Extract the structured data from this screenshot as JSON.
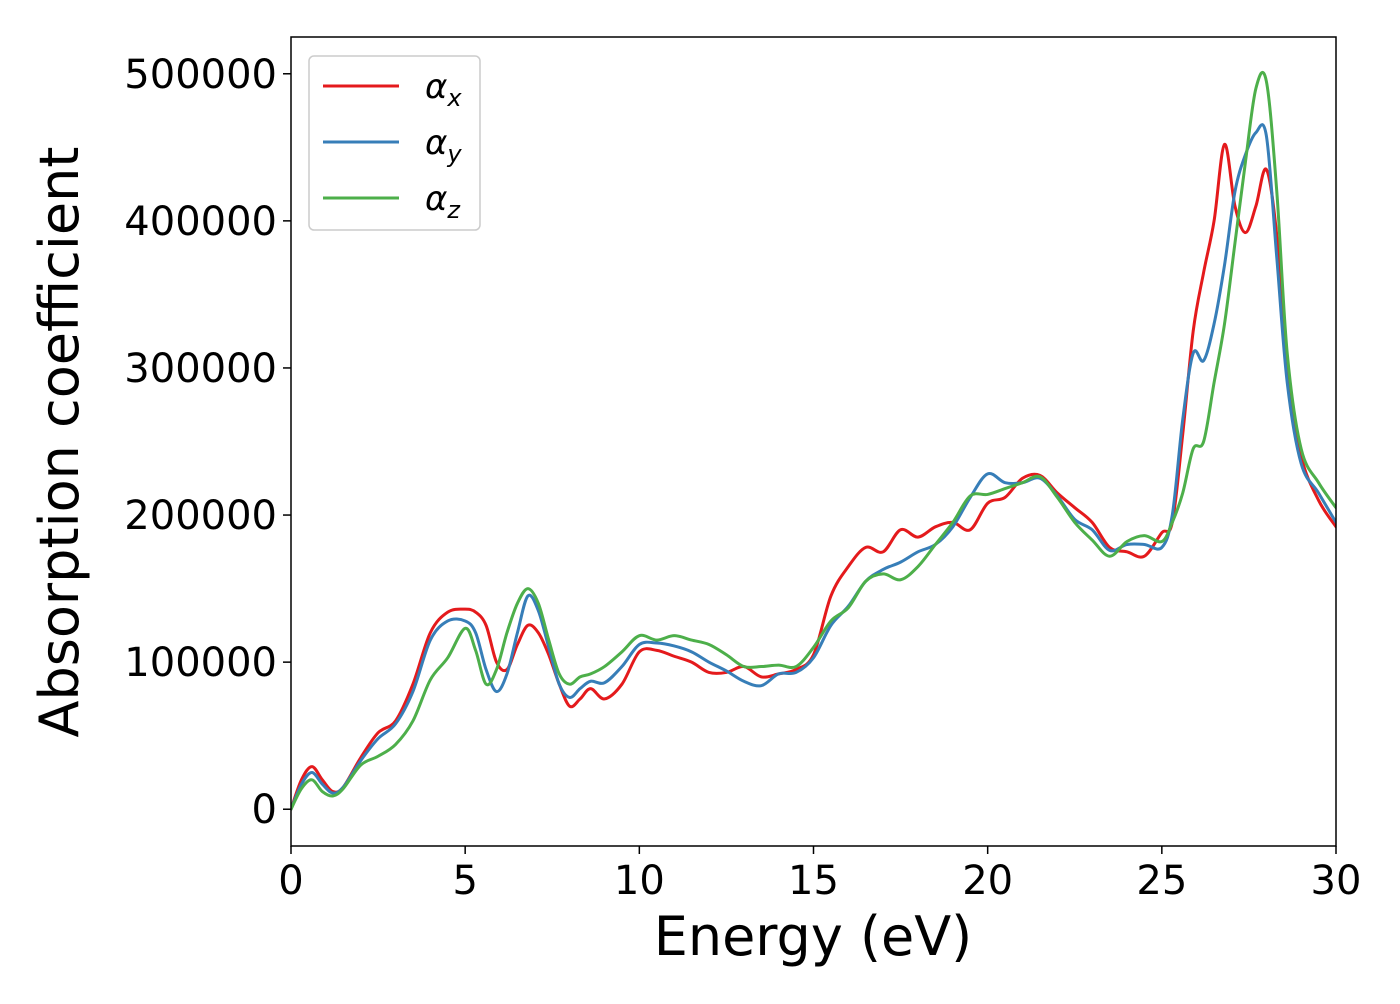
{
  "chart_data": {
    "type": "line",
    "title": "",
    "xlabel": "Energy (eV)",
    "ylabel": "Absorption coefficient",
    "xlim": [
      0,
      30
    ],
    "ylim": [
      -25000,
      525000
    ],
    "xticks": [
      0,
      5,
      10,
      15,
      20,
      25,
      30
    ],
    "yticks": [
      0,
      100000,
      200000,
      300000,
      400000,
      500000
    ],
    "grid": false,
    "legend_position": "top-left",
    "series": [
      {
        "name": "α",
        "subscript": "x",
        "color": "#e41a1c",
        "x": [
          0,
          0.3,
          0.6,
          0.9,
          1.2,
          1.5,
          2,
          2.5,
          3,
          3.5,
          4,
          4.5,
          5,
          5.3,
          5.6,
          5.9,
          6.2,
          6.5,
          6.8,
          7.1,
          7.4,
          7.7,
          8,
          8.3,
          8.6,
          9,
          9.5,
          10,
          10.5,
          11,
          11.5,
          12,
          12.5,
          13,
          13.5,
          14,
          14.5,
          15,
          15.5,
          16,
          16.5,
          17,
          17.5,
          18,
          18.5,
          19,
          19.5,
          20,
          20.5,
          21,
          21.5,
          22,
          22.5,
          23,
          23.5,
          24,
          24.5,
          25,
          25.3,
          25.6,
          25.9,
          26.2,
          26.5,
          26.8,
          27.1,
          27.4,
          27.7,
          28,
          28.3,
          28.6,
          29,
          29.5,
          30
        ],
        "y": [
          0,
          20000,
          29000,
          20000,
          12000,
          15000,
          35000,
          52000,
          60000,
          85000,
          120000,
          134000,
          136000,
          134000,
          125000,
          100000,
          95000,
          112000,
          125000,
          120000,
          105000,
          85000,
          70000,
          75000,
          82000,
          75000,
          85000,
          107000,
          108000,
          104000,
          100000,
          93000,
          93000,
          97000,
          90000,
          92000,
          95000,
          105000,
          145000,
          165000,
          178000,
          175000,
          190000,
          185000,
          192000,
          195000,
          190000,
          208000,
          212000,
          225000,
          227000,
          215000,
          205000,
          195000,
          178000,
          175000,
          172000,
          188000,
          195000,
          255000,
          325000,
          365000,
          400000,
          452000,
          410000,
          392000,
          410000,
          435000,
          390000,
          300000,
          240000,
          210000,
          192000
        ]
      },
      {
        "name": "α",
        "subscript": "y",
        "color": "#377eb8",
        "x": [
          0,
          0.3,
          0.6,
          0.9,
          1.2,
          1.5,
          2,
          2.5,
          3,
          3.5,
          4,
          4.5,
          5,
          5.3,
          5.6,
          5.9,
          6.2,
          6.5,
          6.8,
          7.1,
          7.4,
          7.7,
          8,
          8.3,
          8.6,
          9,
          9.5,
          10,
          10.5,
          11,
          11.5,
          12,
          12.5,
          13,
          13.5,
          14,
          14.5,
          15,
          15.5,
          16,
          16.5,
          17,
          17.5,
          18,
          18.5,
          19,
          19.5,
          20,
          20.5,
          21,
          21.5,
          22,
          22.5,
          23,
          23.5,
          24,
          24.5,
          25,
          25.3,
          25.6,
          25.9,
          26.2,
          26.5,
          26.8,
          27.1,
          27.4,
          27.7,
          28,
          28.3,
          28.6,
          29,
          29.5,
          30
        ],
        "y": [
          0,
          17000,
          25000,
          17000,
          11000,
          15000,
          33000,
          48000,
          58000,
          80000,
          115000,
          128000,
          128000,
          120000,
          95000,
          80000,
          92000,
          120000,
          145000,
          135000,
          110000,
          85000,
          76000,
          82000,
          87000,
          86000,
          97000,
          112000,
          113000,
          111000,
          107000,
          100000,
          94000,
          87000,
          84000,
          92000,
          93000,
          103000,
          125000,
          138000,
          155000,
          163000,
          168000,
          175000,
          180000,
          192000,
          212000,
          228000,
          222000,
          222000,
          225000,
          213000,
          197000,
          190000,
          176000,
          180000,
          180000,
          178000,
          200000,
          265000,
          310000,
          305000,
          330000,
          370000,
          420000,
          445000,
          460000,
          458000,
          375000,
          290000,
          235000,
          215000,
          195000
        ]
      },
      {
        "name": "α",
        "subscript": "z",
        "color": "#4daf4a",
        "x": [
          0,
          0.3,
          0.6,
          0.9,
          1.2,
          1.5,
          2,
          2.5,
          3,
          3.5,
          4,
          4.5,
          5,
          5.3,
          5.6,
          5.9,
          6.2,
          6.5,
          6.8,
          7.1,
          7.4,
          7.7,
          8,
          8.3,
          8.6,
          9,
          9.5,
          10,
          10.5,
          11,
          11.5,
          12,
          12.5,
          13,
          13.5,
          14,
          14.5,
          15,
          15.5,
          16,
          16.5,
          17,
          17.5,
          18,
          18.5,
          19,
          19.5,
          20,
          20.5,
          21,
          21.5,
          22,
          22.5,
          23,
          23.5,
          24,
          24.5,
          25,
          25.3,
          25.6,
          25.9,
          26.2,
          26.5,
          26.8,
          27.1,
          27.4,
          27.7,
          28,
          28.3,
          28.6,
          29,
          29.5,
          30
        ],
        "y": [
          0,
          14000,
          20000,
          12000,
          9000,
          14000,
          30000,
          36000,
          44000,
          60000,
          88000,
          103000,
          123000,
          108000,
          85000,
          95000,
          120000,
          140000,
          150000,
          140000,
          115000,
          92000,
          85000,
          90000,
          92000,
          97000,
          107000,
          118000,
          115000,
          118000,
          115000,
          112000,
          105000,
          97000,
          97000,
          98000,
          97000,
          110000,
          128000,
          137000,
          155000,
          160000,
          156000,
          165000,
          180000,
          195000,
          213000,
          214000,
          218000,
          222000,
          226000,
          212000,
          195000,
          183000,
          172000,
          182000,
          186000,
          182000,
          195000,
          215000,
          245000,
          250000,
          290000,
          330000,
          385000,
          440000,
          490000,
          495000,
          420000,
          310000,
          245000,
          222000,
          205000
        ]
      }
    ]
  }
}
